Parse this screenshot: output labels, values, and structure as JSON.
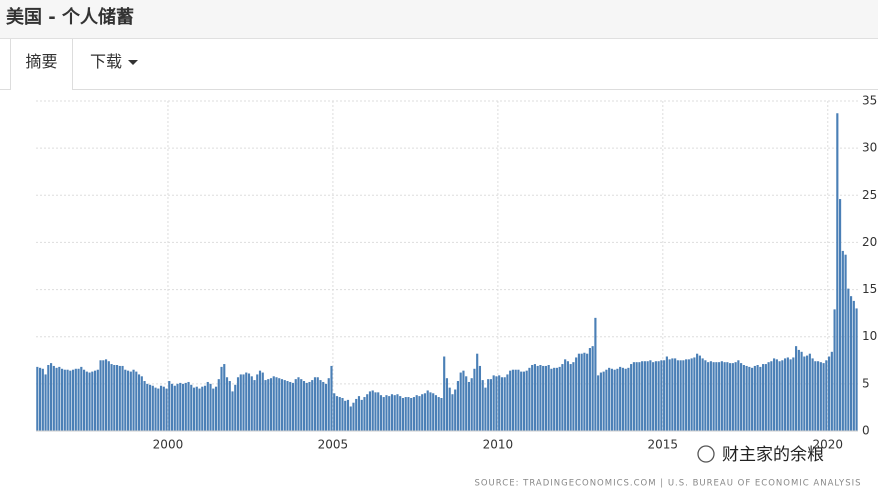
{
  "header": {
    "title": "美国 - 个人储蓄",
    "tabs": [
      "摘要",
      "下载"
    ]
  },
  "chart_data": {
    "type": "bar",
    "color": "#4a7fb6",
    "grid": true,
    "source": "SOURCE: TRADINGECONOMICS.COM | U.S. BUREAU OF ECONOMIC ANALYSIS",
    "ylim": [
      0,
      35
    ],
    "yticks": [
      0,
      5,
      10,
      15,
      20,
      25,
      30,
      35
    ],
    "categories": [
      null,
      null,
      null,
      null,
      null,
      null,
      null,
      null,
      null,
      null,
      null,
      null,
      null,
      null,
      null,
      null,
      null,
      null,
      null,
      null,
      null,
      null,
      null,
      null,
      null,
      null,
      null,
      null,
      null,
      null,
      null,
      null,
      null,
      null,
      null,
      null,
      null,
      null,
      null,
      null,
      null,
      null,
      null,
      null,
      null,
      null,
      null,
      null,
      "2000",
      null,
      null,
      null,
      null,
      null,
      null,
      null,
      null,
      null,
      null,
      null,
      null,
      null,
      null,
      null,
      null,
      null,
      null,
      null,
      null,
      null,
      null,
      null,
      null,
      null,
      null,
      null,
      null,
      null,
      null,
      null,
      null,
      null,
      null,
      null,
      null,
      null,
      null,
      null,
      null,
      null,
      null,
      null,
      null,
      null,
      null,
      null,
      null,
      null,
      null,
      null,
      null,
      null,
      null,
      null,
      null,
      null,
      null,
      null,
      "2005",
      null,
      null,
      null,
      null,
      null,
      null,
      null,
      null,
      null,
      null,
      null,
      null,
      null,
      null,
      null,
      null,
      null,
      null,
      null,
      null,
      null,
      null,
      null,
      null,
      null,
      null,
      null,
      null,
      null,
      null,
      null,
      null,
      null,
      null,
      null,
      null,
      null,
      null,
      null,
      null,
      null,
      null,
      null,
      null,
      null,
      null,
      null,
      null,
      null,
      null,
      null,
      null,
      null,
      null,
      null,
      null,
      null,
      null,
      null,
      "2010",
      null,
      null,
      null,
      null,
      null,
      null,
      null,
      null,
      null,
      null,
      null,
      null,
      null,
      null,
      null,
      null,
      null,
      null,
      null,
      null,
      null,
      null,
      null,
      null,
      null,
      null,
      null,
      null,
      null,
      null,
      null,
      null,
      null,
      null,
      null,
      null,
      null,
      null,
      null,
      null,
      null,
      null,
      null,
      null,
      null,
      null,
      null,
      null,
      null,
      null,
      null,
      null,
      null,
      null,
      null,
      null,
      null,
      null,
      null,
      "2015",
      null,
      null,
      null,
      null,
      null,
      null,
      null,
      null,
      null,
      null,
      null,
      null,
      null,
      null,
      null,
      null,
      null,
      null,
      null,
      null,
      null,
      null,
      null,
      null,
      null,
      null,
      null,
      null,
      null,
      null,
      null,
      null,
      null,
      null,
      null,
      null,
      null,
      null,
      null,
      null,
      null,
      null,
      null,
      null,
      null,
      null,
      null,
      null,
      null,
      null,
      null,
      null,
      null,
      null,
      null,
      null,
      null,
      null,
      null,
      "2020",
      null,
      null,
      null,
      null,
      null,
      null,
      null,
      null,
      null,
      null
    ],
    "values": [
      6.8,
      6.7,
      6.6,
      6.0,
      7.0,
      7.2,
      6.9,
      6.7,
      6.8,
      6.6,
      6.5,
      6.5,
      6.4,
      6.5,
      6.6,
      6.6,
      6.8,
      6.5,
      6.3,
      6.2,
      6.3,
      6.4,
      6.5,
      7.5,
      7.5,
      7.6,
      7.4,
      7.1,
      7.0,
      7.0,
      6.9,
      6.9,
      6.5,
      6.4,
      6.3,
      6.5,
      6.3,
      6.0,
      5.8,
      5.3,
      5.0,
      4.9,
      4.8,
      4.6,
      4.5,
      4.8,
      4.7,
      4.5,
      5.3,
      5.0,
      4.8,
      5.0,
      5.1,
      5.0,
      5.1,
      5.2,
      4.9,
      4.6,
      4.7,
      4.5,
      4.7,
      4.8,
      5.2,
      5.0,
      4.5,
      4.7,
      5.5,
      6.8,
      7.1,
      5.7,
      5.3,
      4.2,
      4.9,
      5.7,
      6.0,
      6.0,
      6.2,
      6.1,
      5.8,
      5.4,
      6.0,
      6.4,
      6.2,
      5.4,
      5.5,
      5.6,
      5.8,
      5.7,
      5.6,
      5.5,
      5.4,
      5.3,
      5.2,
      5.1,
      5.5,
      5.7,
      5.5,
      5.3,
      5.1,
      5.2,
      5.4,
      5.7,
      5.7,
      5.4,
      5.2,
      5.0,
      5.6,
      6.9,
      4.0,
      3.7,
      3.6,
      3.5,
      3.2,
      3.3,
      2.6,
      3.0,
      3.4,
      3.7,
      3.3,
      3.6,
      3.9,
      4.2,
      4.3,
      4.1,
      4.1,
      3.8,
      3.6,
      3.8,
      3.7,
      3.9,
      3.8,
      3.9,
      3.7,
      3.5,
      3.6,
      3.6,
      3.5,
      3.6,
      3.8,
      3.7,
      3.9,
      4.0,
      4.3,
      4.1,
      4.0,
      3.8,
      3.6,
      3.5,
      7.9,
      5.6,
      4.6,
      3.9,
      4.4,
      5.3,
      6.2,
      6.4,
      5.8,
      5.2,
      5.6,
      6.6,
      8.2,
      6.9,
      5.4,
      4.6,
      5.5,
      5.5,
      5.9,
      5.8,
      5.9,
      5.7,
      5.7,
      6.0,
      6.4,
      6.5,
      6.5,
      6.5,
      6.3,
      6.3,
      6.4,
      6.7,
      7.0,
      7.1,
      6.9,
      7.0,
      6.9,
      6.9,
      7.0,
      6.6,
      6.7,
      6.7,
      6.8,
      7.1,
      7.6,
      7.4,
      7.1,
      7.3,
      7.8,
      8.2,
      8.2,
      8.3,
      8.2,
      8.8,
      9.0,
      12.0,
      5.9,
      6.2,
      6.3,
      6.5,
      6.7,
      6.6,
      6.5,
      6.6,
      6.8,
      6.7,
      6.6,
      6.7,
      7.1,
      7.3,
      7.3,
      7.3,
      7.4,
      7.4,
      7.4,
      7.5,
      7.3,
      7.4,
      7.4,
      7.5,
      7.5,
      7.9,
      7.6,
      7.7,
      7.7,
      7.5,
      7.5,
      7.5,
      7.6,
      7.6,
      7.7,
      7.8,
      8.2,
      8.0,
      7.7,
      7.5,
      7.3,
      7.4,
      7.3,
      7.3,
      7.3,
      7.4,
      7.3,
      7.3,
      7.2,
      7.2,
      7.3,
      7.5,
      7.2,
      7.0,
      6.9,
      6.8,
      6.7,
      6.9,
      7.0,
      6.8,
      7.1,
      7.1,
      7.3,
      7.4,
      7.7,
      7.6,
      7.4,
      7.5,
      7.7,
      7.8,
      7.6,
      7.8,
      9.0,
      8.6,
      8.4,
      7.9,
      8.0,
      8.2,
      7.7,
      7.4,
      7.4,
      7.3,
      7.2,
      7.5,
      7.9,
      8.4,
      12.9,
      33.7,
      24.6,
      19.1,
      18.7,
      15.1,
      14.3,
      13.8,
      13.0
    ]
  },
  "watermark": "财主家的余粮"
}
